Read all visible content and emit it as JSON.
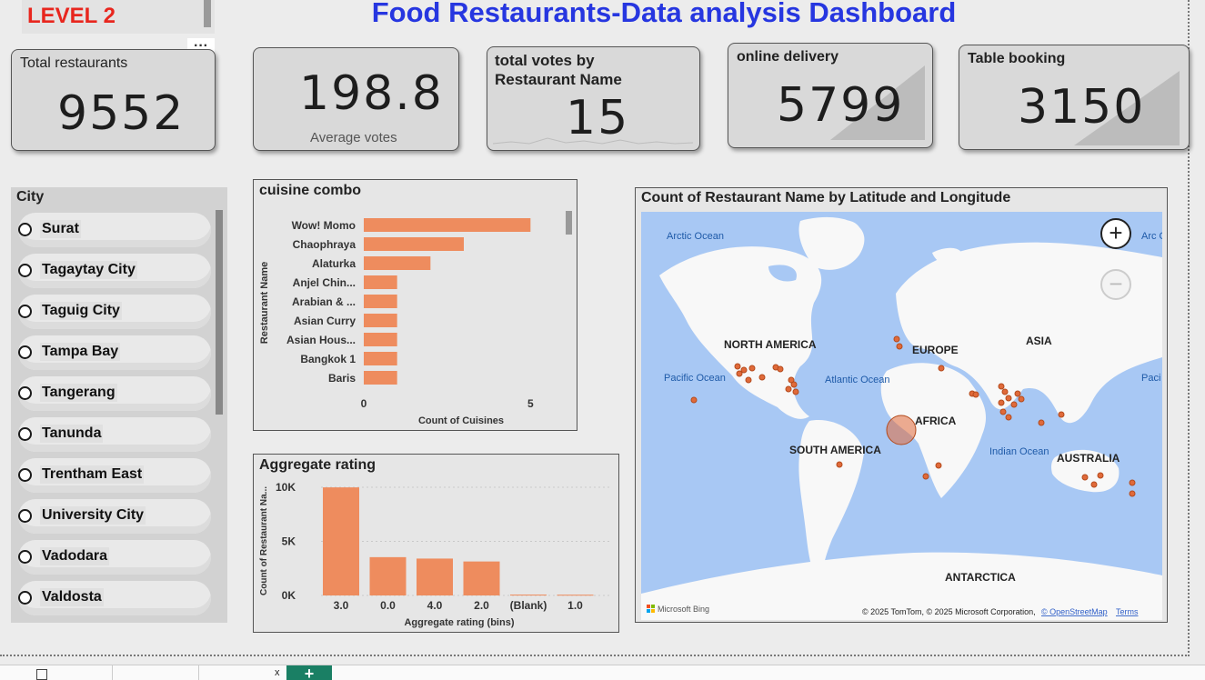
{
  "header": {
    "level_label": "LEVEL 2",
    "title": "Food Restaurants-Data analysis Dashboard",
    "more_button": "···"
  },
  "kpis": {
    "total_restaurants": {
      "label": "Total restaurants",
      "value": "9552"
    },
    "average_votes": {
      "label": "Average votes",
      "value": "198.8"
    },
    "total_votes": {
      "label": "total votes by Restaurant Name",
      "value": "15"
    },
    "online_delivery": {
      "label": "online delivery",
      "value": "5799"
    },
    "table_booking": {
      "label": "Table booking",
      "value": "3150"
    }
  },
  "city_slicer": {
    "title": "City",
    "items": [
      "Surat",
      "Tagaytay City",
      "Taguig City",
      "Tampa Bay",
      "Tangerang",
      "Tanunda",
      "Trentham East",
      "University City",
      "Vadodara",
      "Valdosta"
    ]
  },
  "colors": {
    "bar": "#ee8c5e",
    "title_blue": "#2636e0",
    "level_red": "#e8261e",
    "ocean": "#a8c8f4"
  },
  "chart_data": [
    {
      "type": "bar",
      "title": "cuisine combo",
      "orientation": "horizontal",
      "categories": [
        "Wow! Momo",
        "Chaophraya",
        "Alaturka",
        "Anjel Chin...",
        "Arabian & ...",
        "Asian Curry",
        "Asian Hous...",
        "Bangkok 1",
        "Baris"
      ],
      "values": [
        5,
        3,
        2,
        1,
        1,
        1,
        1,
        1,
        1
      ],
      "xlabel": "Count of Cuisines",
      "ylabel": "Restaurant Name",
      "xlim": [
        0,
        6
      ],
      "xticks": [
        "0",
        "5"
      ]
    },
    {
      "type": "bar",
      "title": "Aggregate rating",
      "categories": [
        "3.0",
        "0.0",
        "4.0",
        "2.0",
        "(Blank)",
        "1.0"
      ],
      "values": [
        9990,
        3540,
        3410,
        3140,
        80,
        70
      ],
      "xlabel": "Aggregate rating (bins)",
      "ylabel": "Count of Restaurant Na...",
      "ylim": [
        0,
        10000
      ],
      "yticks": [
        "0K",
        "5K",
        "10K"
      ]
    }
  ],
  "map": {
    "title": "Count of Restaurant Name by Latitude and Longitude",
    "labels": {
      "arctic": "Arctic Ocean",
      "arctic_right": "Arc Oce",
      "north_america": "NORTH AMERICA",
      "europe": "EUROPE",
      "asia": "ASIA",
      "pacific": "Pacific Ocean",
      "pacific_right": "Paci Oce",
      "atlantic": "Atlantic Ocean",
      "africa": "AFRICA",
      "south_america": "SOUTH AMERICA",
      "indian": "Indian Ocean",
      "australia": "AUSTRALIA",
      "antarctica": "ANTARCTICA"
    },
    "zoom_in": "+",
    "zoom_out": "−",
    "bing": "Microsoft Bing",
    "copyright": "© 2025 TomTom, © 2025 Microsoft Corporation,",
    "osm_link": "© OpenStreetMap",
    "terms": "Terms"
  },
  "footer": {
    "close": "x",
    "add": "+"
  }
}
